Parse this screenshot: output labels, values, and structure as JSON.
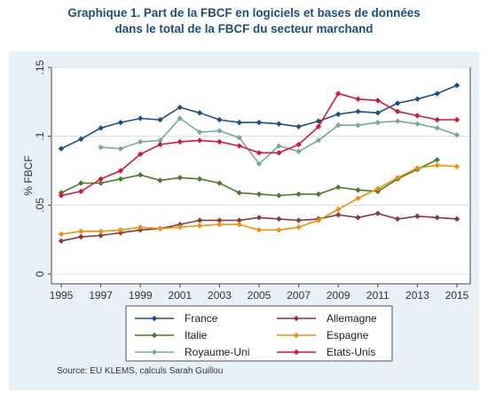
{
  "title": {
    "line1": "Graphique 1. Part de la FBCF en logiciels et bases de données",
    "line2": "dans le total de la FBCF du secteur marchand"
  },
  "source": "Source: EU KLEMS, calculs Sarah Guillou",
  "chart_data": {
    "type": "line",
    "ylabel": "% FBCF",
    "xlabel": "",
    "xlim": [
      1995,
      2015
    ],
    "ylim": [
      0,
      0.15
    ],
    "xticks": [
      "1995",
      "1997",
      "1999",
      "2001",
      "2003",
      "2005",
      "2007",
      "2009",
      "2011",
      "2013",
      "2015"
    ],
    "yticks": [
      "0",
      ".05",
      ".1",
      ".15"
    ],
    "grid": true,
    "legend_position": "bottom",
    "series": [
      {
        "name": "France",
        "color": "#1f4e8c",
        "x": [
          1995,
          1996,
          1997,
          1998,
          1999,
          2000,
          2001,
          2002,
          2003,
          2004,
          2005,
          2006,
          2007,
          2008,
          2009,
          2010,
          2011,
          2012,
          2013,
          2014,
          2015
        ],
        "values": [
          0.091,
          0.098,
          0.106,
          0.11,
          0.113,
          0.112,
          0.121,
          0.117,
          0.112,
          0.11,
          0.11,
          0.109,
          0.107,
          0.111,
          0.116,
          0.118,
          0.117,
          0.124,
          0.127,
          0.131,
          0.137
        ]
      },
      {
        "name": "Allemagne",
        "color": "#8b3a3a",
        "x": [
          1995,
          1996,
          1997,
          1998,
          1999,
          2000,
          2001,
          2002,
          2003,
          2004,
          2005,
          2006,
          2007,
          2008,
          2009,
          2010,
          2011,
          2012,
          2013,
          2014,
          2015
        ],
        "values": [
          0.024,
          0.027,
          0.028,
          0.03,
          0.032,
          0.033,
          0.036,
          0.039,
          0.039,
          0.039,
          0.041,
          0.04,
          0.039,
          0.04,
          0.043,
          0.041,
          0.044,
          0.04,
          0.042,
          0.041,
          0.04
        ]
      },
      {
        "name": "Italie",
        "color": "#4a7c2a",
        "x": [
          1995,
          1996,
          1997,
          1998,
          1999,
          2000,
          2001,
          2002,
          2003,
          2004,
          2005,
          2006,
          2007,
          2008,
          2009,
          2010,
          2011,
          2012,
          2013,
          2014
        ],
        "values": [
          0.059,
          0.066,
          0.066,
          0.069,
          0.072,
          0.068,
          0.07,
          0.069,
          0.066,
          0.059,
          0.058,
          0.057,
          0.058,
          0.058,
          0.063,
          0.061,
          0.06,
          0.069,
          0.076,
          0.083
        ]
      },
      {
        "name": "Espagne",
        "color": "#f0900c",
        "x": [
          1995,
          1996,
          1997,
          1998,
          1999,
          2000,
          2001,
          2002,
          2003,
          2004,
          2005,
          2006,
          2007,
          2008,
          2009,
          2010,
          2011,
          2012,
          2013,
          2014,
          2015
        ],
        "values": [
          0.029,
          0.031,
          0.031,
          0.032,
          0.034,
          0.033,
          0.034,
          0.035,
          0.036,
          0.036,
          0.032,
          0.032,
          0.034,
          0.039,
          0.047,
          0.055,
          0.062,
          0.07,
          0.077,
          0.079,
          0.078
        ]
      },
      {
        "name": "Royaume-Uni",
        "color": "#7aa89a",
        "x": [
          1997,
          1998,
          1999,
          2000,
          2001,
          2002,
          2003,
          2004,
          2005,
          2006,
          2007,
          2008,
          2009,
          2010,
          2011,
          2012,
          2013,
          2014,
          2015
        ],
        "values": [
          0.092,
          0.091,
          0.096,
          0.097,
          0.113,
          0.103,
          0.104,
          0.099,
          0.08,
          0.093,
          0.089,
          0.097,
          0.108,
          0.108,
          0.11,
          0.111,
          0.109,
          0.106,
          0.101
        ]
      },
      {
        "name": "Etats-Unis",
        "color": "#d4183c",
        "x": [
          1995,
          1996,
          1997,
          1998,
          1999,
          2000,
          2001,
          2002,
          2003,
          2004,
          2005,
          2006,
          2007,
          2008,
          2009,
          2010,
          2011,
          2012,
          2013,
          2014,
          2015
        ],
        "values": [
          0.057,
          0.06,
          0.069,
          0.075,
          0.087,
          0.094,
          0.096,
          0.097,
          0.096,
          0.093,
          0.088,
          0.088,
          0.094,
          0.107,
          0.131,
          0.127,
          0.126,
          0.118,
          0.115,
          0.112,
          0.112
        ]
      }
    ]
  }
}
